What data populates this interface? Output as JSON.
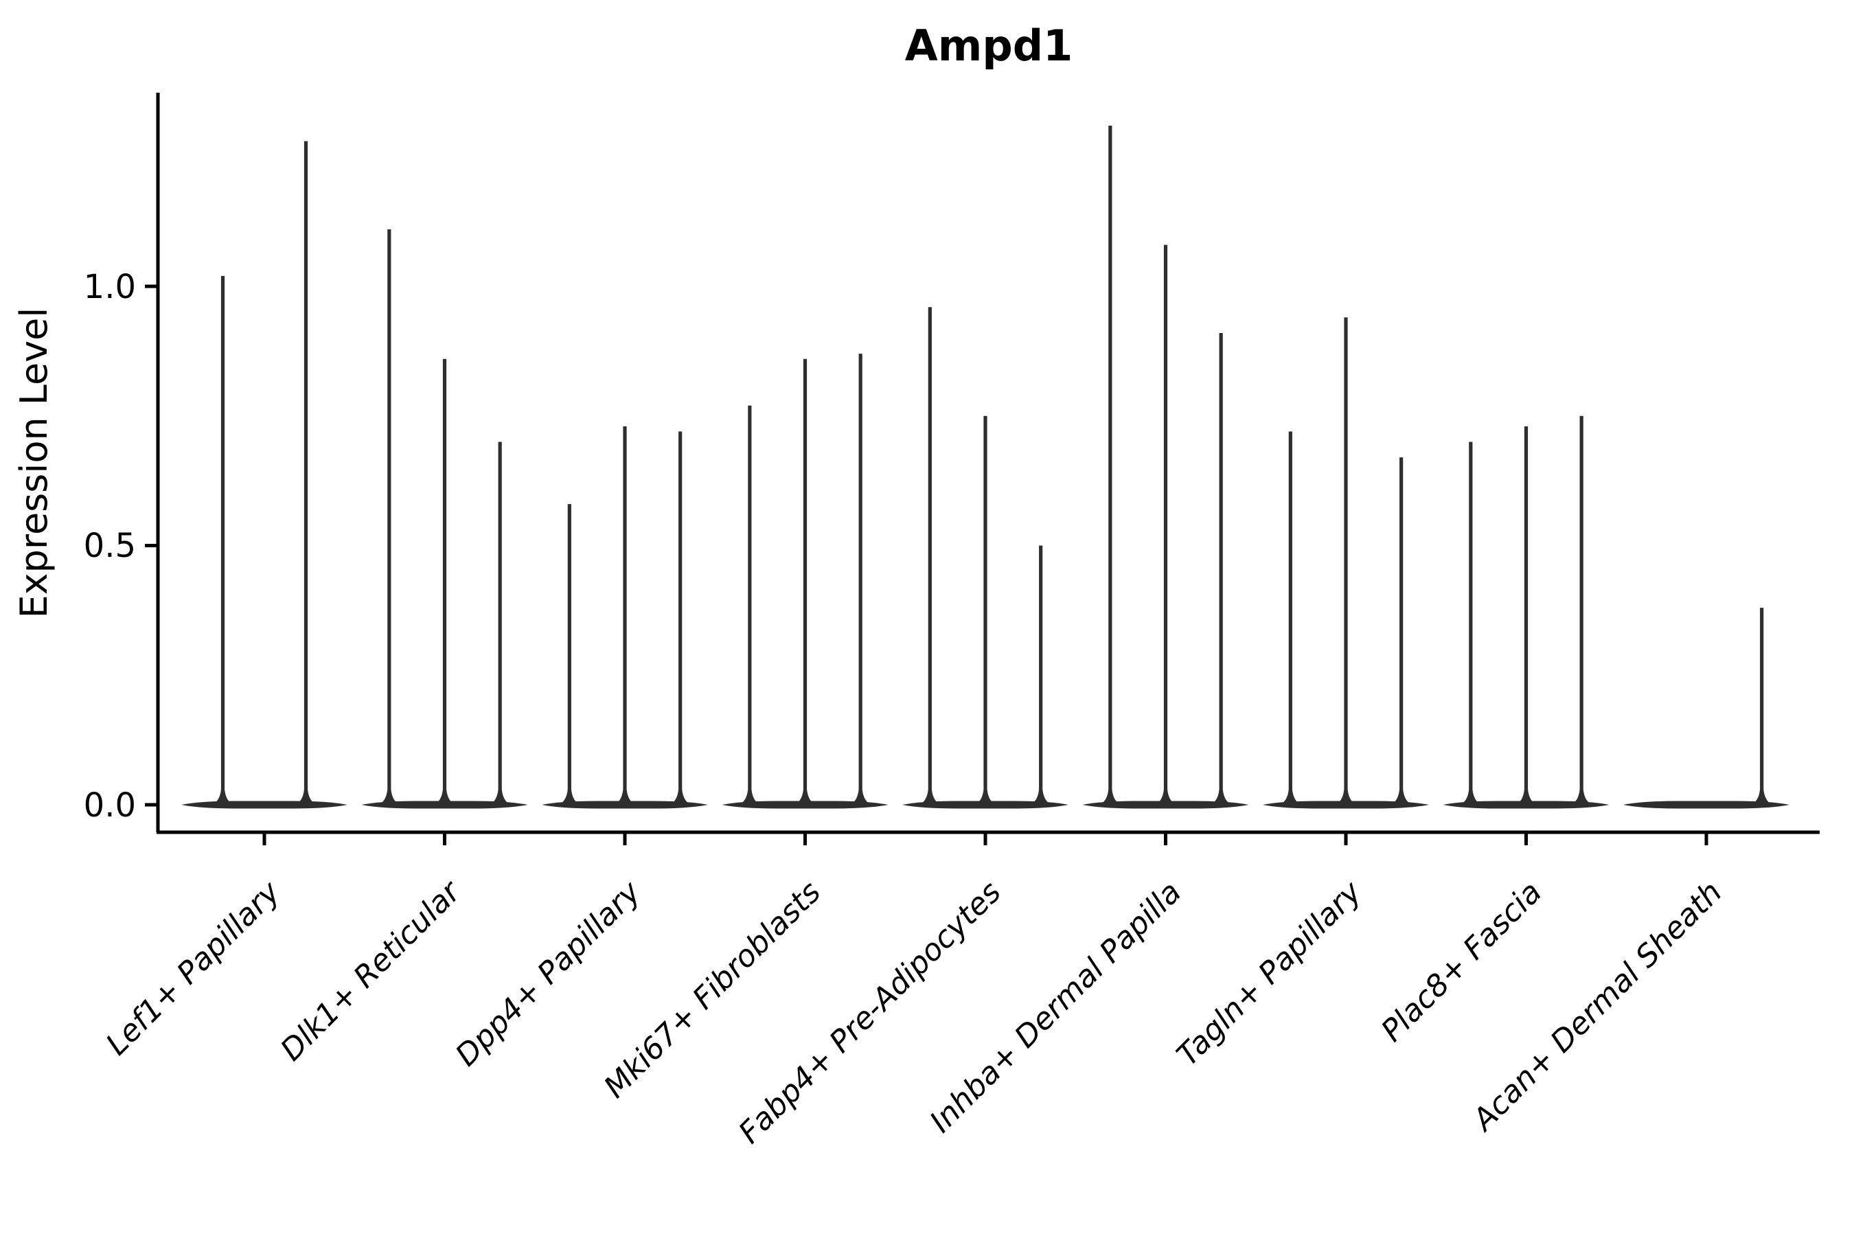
{
  "title": "Ampd1",
  "y_axis": {
    "label": "Expression Level",
    "tick_labels": [
      "0.0",
      "0.5",
      "1.0"
    ]
  },
  "colors": {
    "violin": "#2e2e2e",
    "axis": "#000000",
    "background": "#ffffff"
  },
  "chart_data": {
    "type": "violin",
    "title": "Ampd1",
    "xlabel": "",
    "ylabel": "Expression Level",
    "yticks": [
      0.0,
      0.5,
      1.0
    ],
    "ytick_labels": [
      "0.0",
      "0.5",
      "1.0"
    ],
    "ylim": [
      -0.05,
      1.37
    ],
    "grid": false,
    "legend": false,
    "categories": [
      "Lef1+ Papillary",
      "Dlk1+ Reticular",
      "Dpp4+ Papillary",
      "Mki67+ Fibroblasts",
      "Fabp4+ Pre-Adipocytes",
      "Inhba+ Dermal Papilla",
      "Tagln+ Papillary",
      "Plac8+ Fascia",
      "Acan+ Dermal Sheath"
    ],
    "violins_per_category": [
      2,
      3,
      3,
      3,
      3,
      3,
      3,
      3,
      3
    ],
    "max_expression": [
      [
        1.02,
        1.28
      ],
      [
        1.11,
        0.86,
        0.7
      ],
      [
        0.58,
        0.73,
        0.72
      ],
      [
        0.77,
        0.86,
        0.87
      ],
      [
        0.96,
        0.75,
        0.5
      ],
      [
        1.31,
        1.08,
        0.91
      ],
      [
        0.72,
        0.94,
        0.67
      ],
      [
        0.7,
        0.73,
        0.75
      ],
      [
        0.0,
        0.0,
        0.38
      ]
    ],
    "shape_note": "Each violin's density is concentrated at expression 0 (flat lens at baseline) with a thin vertical spike reaching the maximum expression value; violins with max 0 are flat."
  }
}
